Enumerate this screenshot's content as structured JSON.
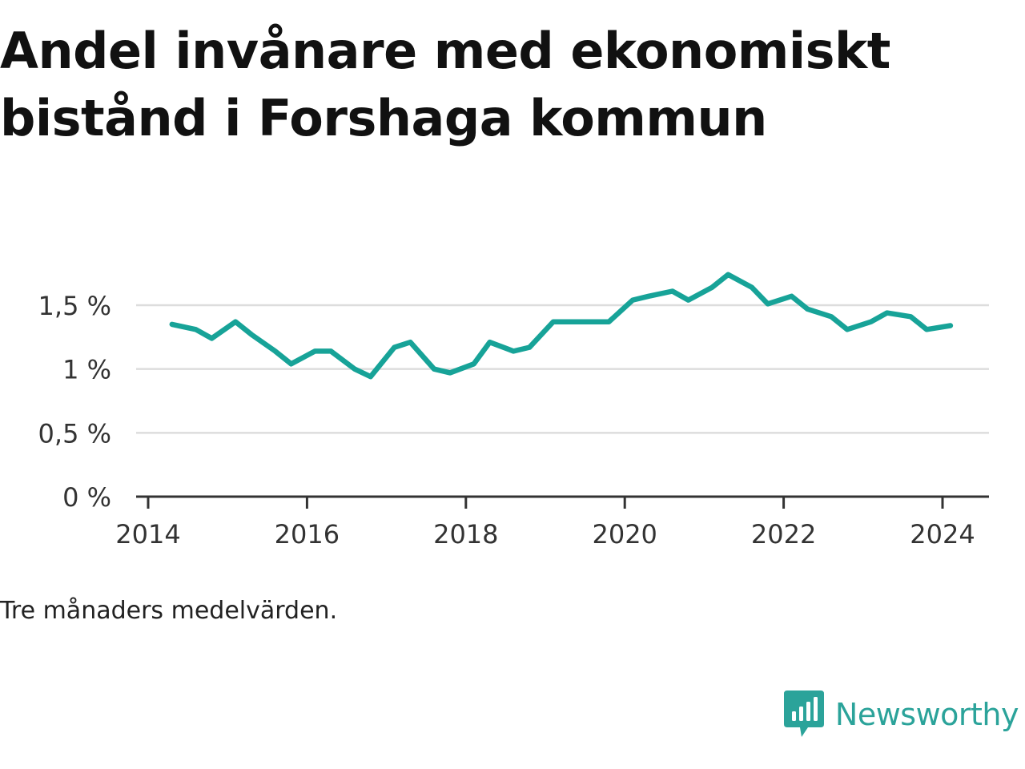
{
  "title": {
    "line1": "Andel invånare med ekonomiskt",
    "line2": "bistånd i Forshaga kommun"
  },
  "note": "Tre månaders medelvärden.",
  "brand": {
    "name": "Newsworthy",
    "icon": "bar-chart-speech-bubble-icon",
    "color": "#2ba39a"
  },
  "colors": {
    "line": "#17a398",
    "grid": "#dddddd",
    "axis": "#333333"
  },
  "chart_data": {
    "type": "line",
    "title": "Andel invånare med ekonomiskt bistånd i Forshaga kommun",
    "xlabel": "",
    "ylabel": "",
    "xlim": [
      2014,
      2024.6
    ],
    "ylim": [
      0,
      1.75
    ],
    "x_ticks": [
      2014,
      2016,
      2018,
      2020,
      2022,
      2024
    ],
    "y_ticks": [
      0,
      0.5,
      1,
      1.5
    ],
    "y_tick_labels": [
      "0 %",
      "0,5 %",
      "1 %",
      "1,5 %"
    ],
    "grid": true,
    "legend": "none",
    "series": [
      {
        "x": [
          2014.3,
          2014.6,
          2014.8,
          2015.1,
          2015.3,
          2015.6,
          2015.8,
          2016.1,
          2016.3,
          2016.6,
          2016.8,
          2017.1,
          2017.3,
          2017.6,
          2017.8,
          2018.1,
          2018.3,
          2018.6,
          2018.8,
          2019.1,
          2019.3,
          2019.6,
          2019.8,
          2020.1,
          2020.3,
          2020.6,
          2020.8,
          2021.1,
          2021.3,
          2021.6,
          2021.8,
          2022.1,
          2022.3,
          2022.6,
          2022.8,
          2023.1,
          2023.3,
          2023.6,
          2023.8,
          2024.1
        ],
        "values": [
          1.35,
          1.31,
          1.24,
          1.37,
          1.27,
          1.14,
          1.04,
          1.14,
          1.14,
          1.0,
          0.94,
          1.17,
          1.21,
          1.0,
          0.97,
          1.04,
          1.21,
          1.14,
          1.17,
          1.37,
          1.37,
          1.37,
          1.37,
          1.54,
          1.57,
          1.61,
          1.54,
          1.64,
          1.74,
          1.64,
          1.51,
          1.57,
          1.47,
          1.41,
          1.31,
          1.37,
          1.44,
          1.41,
          1.31,
          1.34
        ]
      }
    ]
  }
}
